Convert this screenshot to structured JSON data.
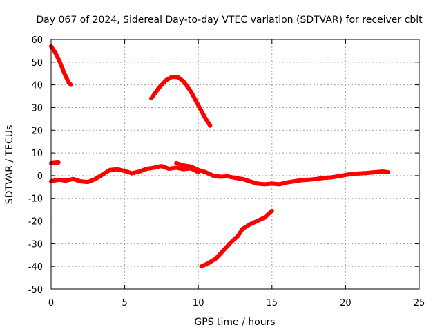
{
  "chart_data": {
    "type": "line",
    "title": "Day 067 of 2024, Sidereal Day-to-day VTEC variation (SDTVAR) for receiver cblt",
    "xlabel": "GPS time / hours",
    "ylabel": "SDTVAR / TECUs",
    "xlim": [
      0,
      25
    ],
    "ylim": [
      -50,
      60
    ],
    "xticks": [
      0,
      5,
      10,
      15,
      20,
      25
    ],
    "yticks": [
      -50,
      -40,
      -30,
      -20,
      -10,
      0,
      10,
      20,
      30,
      40,
      50,
      60
    ],
    "grid": true,
    "series_color": "#ff0000",
    "series": [
      {
        "name": "segment-early-high",
        "x": [
          0.0,
          0.3,
          0.6,
          0.9,
          1.2,
          1.35
        ],
        "y": [
          57,
          54,
          50,
          45,
          41,
          40
        ]
      },
      {
        "name": "segment-midday-arc",
        "x": [
          6.8,
          7.3,
          7.8,
          8.2,
          8.6,
          9.0,
          9.5,
          10.0,
          10.5,
          10.8
        ],
        "y": [
          34,
          38.5,
          42,
          43.5,
          43.5,
          41.5,
          37,
          31,
          25,
          22
        ]
      },
      {
        "name": "segment-short-offset",
        "x": [
          0.0,
          0.5
        ],
        "y": [
          5.5,
          5.8
        ]
      },
      {
        "name": "segment-main-a",
        "x": [
          0.0,
          0.5,
          1.0,
          1.5,
          2.0,
          2.5,
          3.0,
          3.5,
          4.0,
          4.5,
          5.0,
          5.5,
          6.0,
          6.5,
          7.0,
          7.5,
          8.0,
          8.5,
          9.0,
          9.5,
          10.0
        ],
        "y": [
          -2.5,
          -1.8,
          -2.2,
          -1.5,
          -2.5,
          -2.8,
          -1.5,
          0.5,
          2.5,
          2.8,
          2.0,
          1.0,
          1.8,
          3.0,
          3.5,
          4.2,
          3.0,
          3.5,
          2.8,
          3.2,
          1.5
        ]
      },
      {
        "name": "segment-main-b",
        "x": [
          8.5,
          9.0,
          9.5,
          10.0,
          10.5,
          11.0,
          11.5,
          12.0,
          12.5,
          13.0,
          13.5,
          14.0,
          14.5,
          15.0,
          15.5,
          16.0,
          16.5,
          17.0,
          17.5,
          18.0,
          18.5,
          19.0,
          19.5,
          20.0,
          20.5,
          21.0,
          21.5,
          22.0,
          22.5,
          22.9
        ],
        "y": [
          5.5,
          4.5,
          4.0,
          2.5,
          1.5,
          0.0,
          -0.5,
          -0.3,
          -1.0,
          -1.5,
          -2.5,
          -3.5,
          -3.8,
          -3.5,
          -3.8,
          -3.0,
          -2.5,
          -2.0,
          -1.8,
          -1.5,
          -1.0,
          -0.8,
          -0.3,
          0.3,
          0.8,
          1.0,
          1.2,
          1.5,
          1.8,
          1.5
        ]
      },
      {
        "name": "segment-low-rise",
        "x": [
          10.2,
          10.7,
          11.2,
          11.7,
          12.2,
          12.7,
          13.0,
          13.5,
          14.0,
          14.5,
          15.0
        ],
        "y": [
          -40,
          -38.5,
          -36.5,
          -33,
          -29.5,
          -26.5,
          -23.5,
          -21.5,
          -20,
          -18.5,
          -15.5
        ]
      }
    ]
  }
}
